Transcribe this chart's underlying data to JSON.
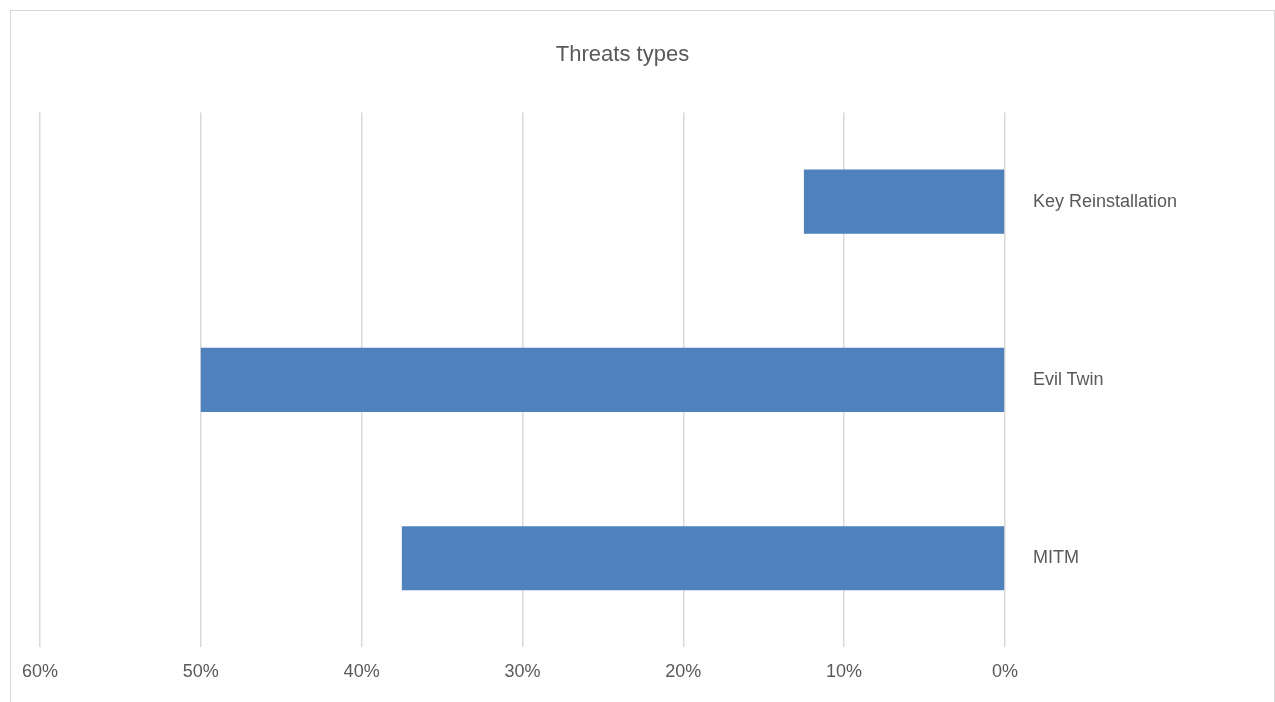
{
  "chart_data": {
    "type": "bar",
    "orientation": "horizontal",
    "title": "Threats types",
    "categories": [
      "Key Reinstallation",
      "Evil Twin",
      "MITM"
    ],
    "values": [
      12.5,
      50,
      37.5
    ],
    "color": "#4f81bd",
    "xlim": [
      60,
      0
    ],
    "xticks": [
      {
        "value": 60,
        "label": "60%"
      },
      {
        "value": 50,
        "label": "50%"
      },
      {
        "value": 40,
        "label": "40%"
      },
      {
        "value": 30,
        "label": "30%"
      },
      {
        "value": 20,
        "label": "20%"
      },
      {
        "value": 10,
        "label": "10%"
      },
      {
        "value": 0,
        "label": "0%"
      }
    ],
    "grid": "x"
  }
}
